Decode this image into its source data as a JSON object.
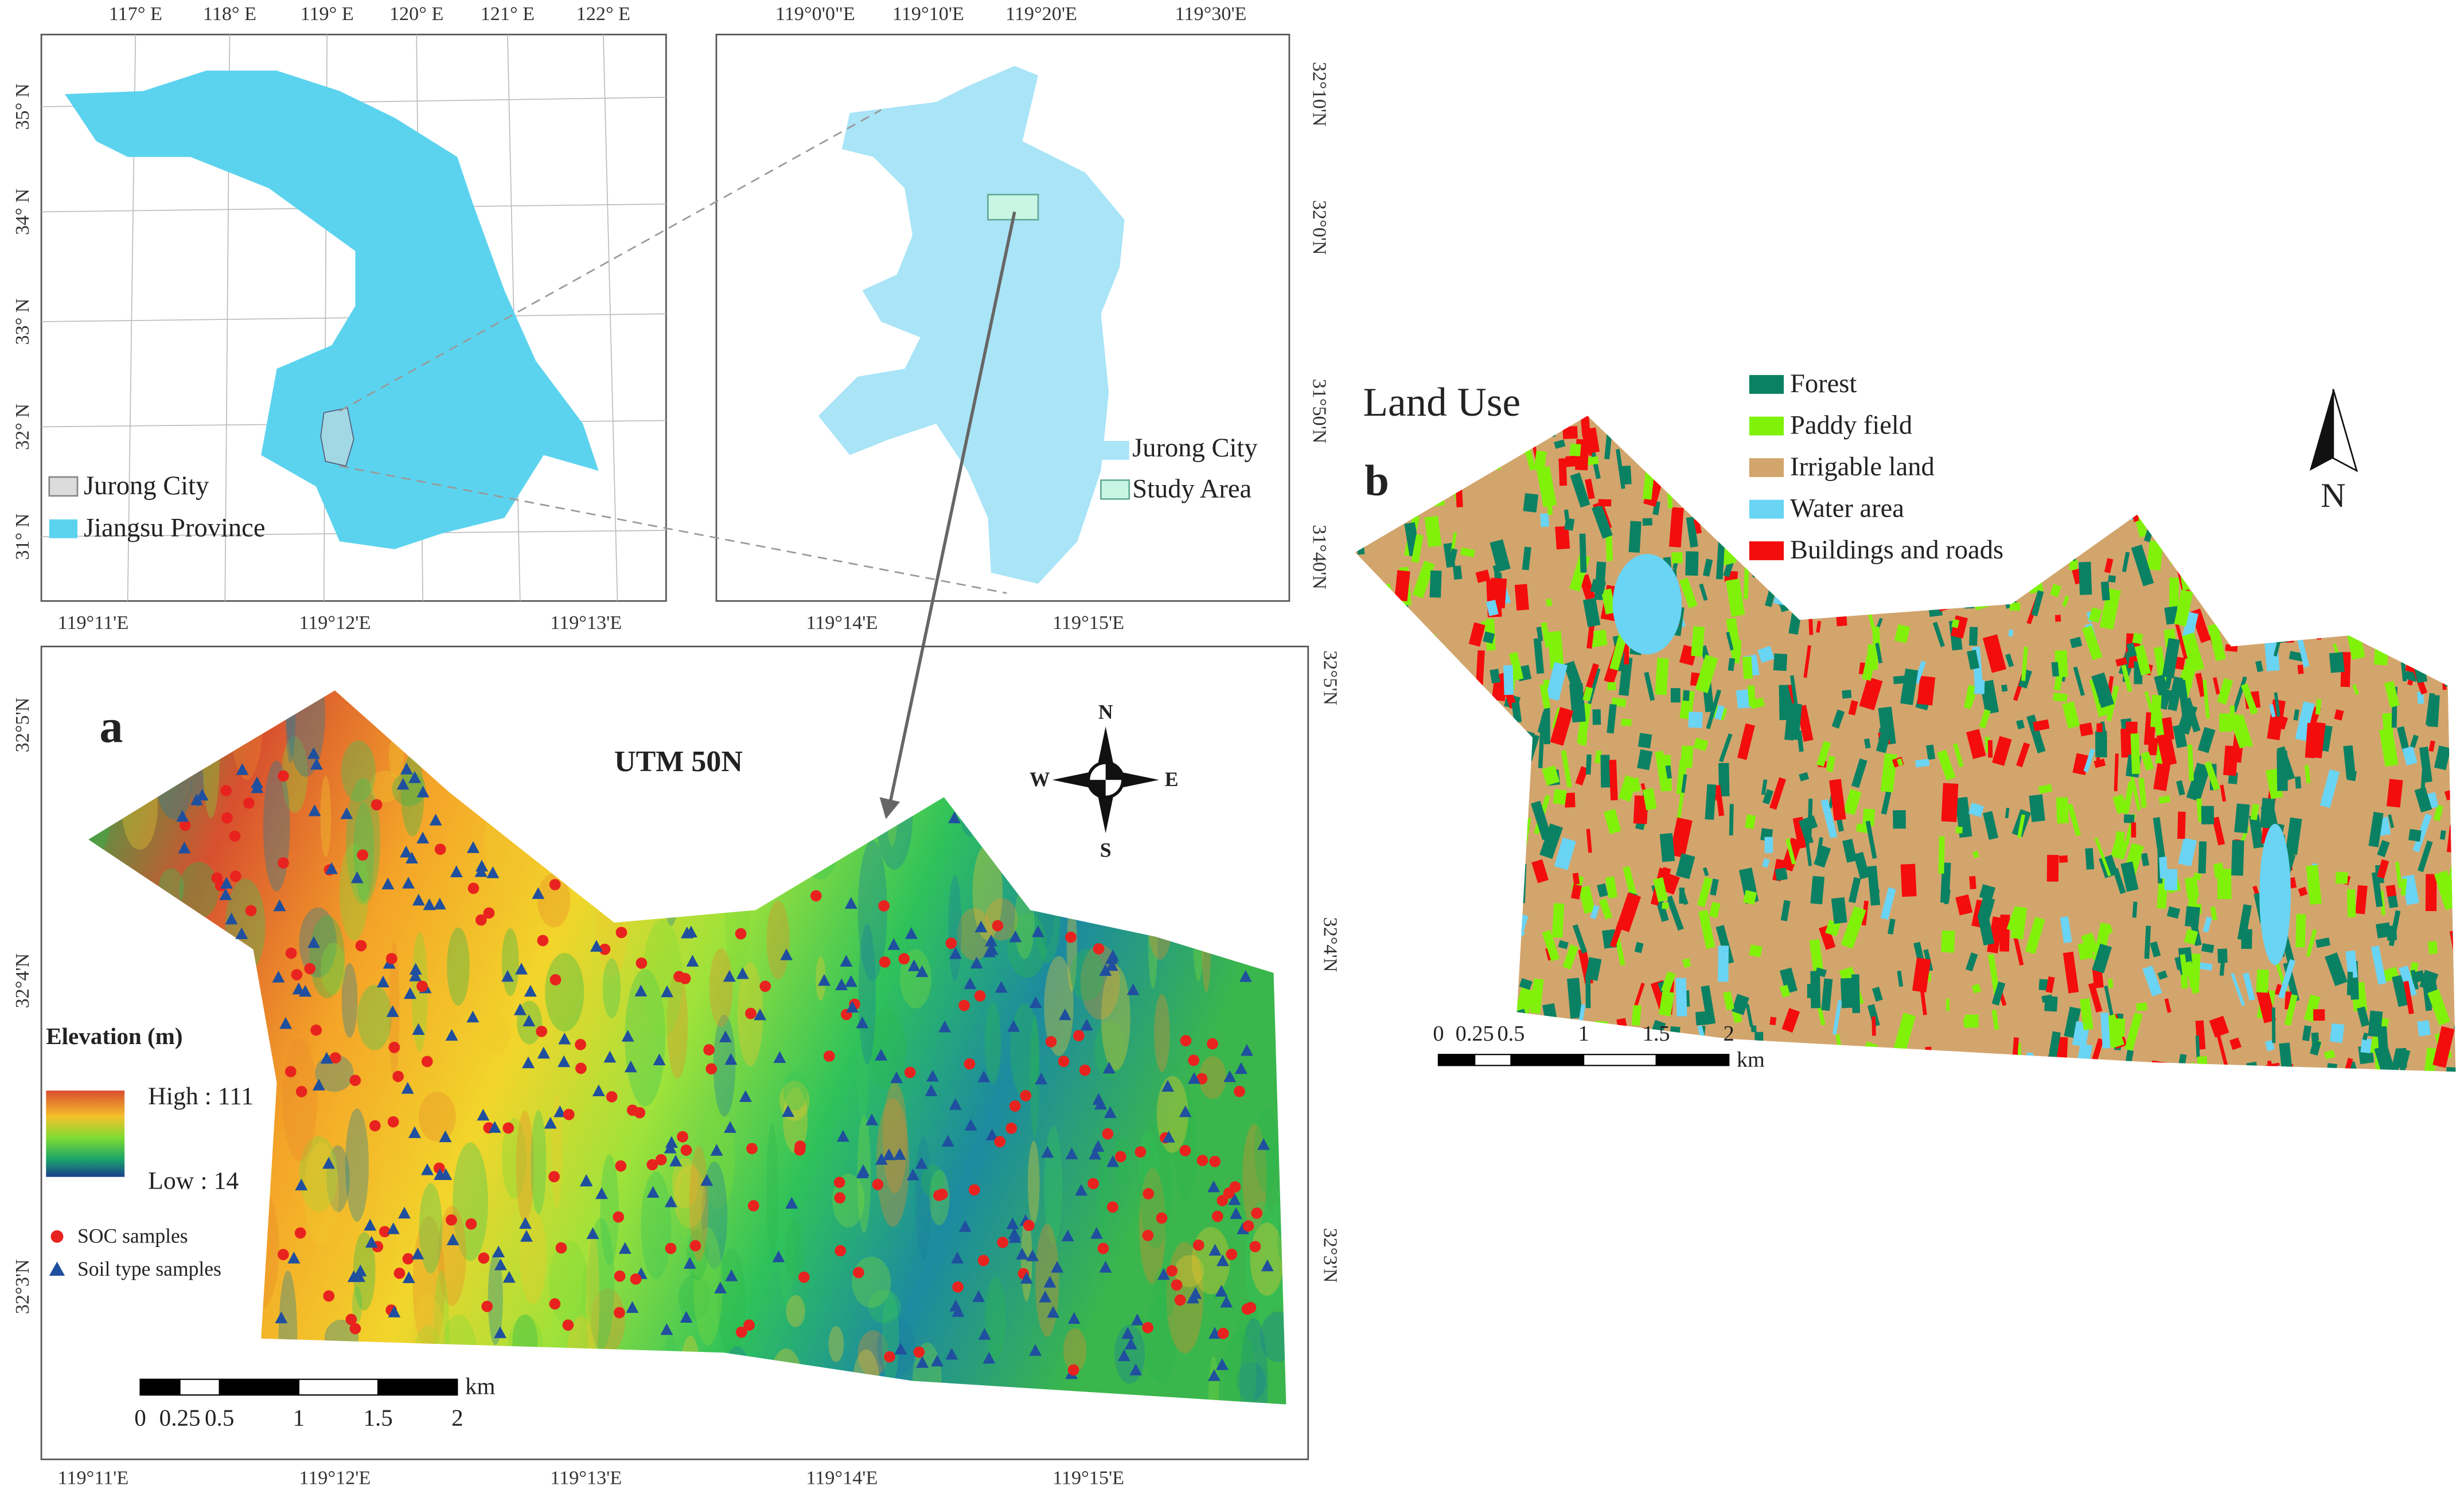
{
  "inset_province": {
    "lon_labels": [
      "117° E",
      "118° E",
      "119° E",
      "120° E",
      "121° E",
      "122° E"
    ],
    "lat_labels": [
      "35° N",
      "34° N",
      "33° N",
      "32° N",
      "31° N"
    ],
    "legend": [
      {
        "label": "Jurong City",
        "color": "#dcdcdc"
      },
      {
        "label": "Jiangsu Province",
        "color": "#5cd3ee"
      }
    ]
  },
  "inset_city": {
    "lon_labels": [
      "119°0'0\"E",
      "119°10'E",
      "119°20'E",
      "119°30'E"
    ],
    "lat_labels": [
      "32°10'N",
      "32°0'N",
      "31°50'N",
      "31°40'N"
    ],
    "legend": [
      {
        "label": "Jurong City",
        "color": "#a9e4f7"
      },
      {
        "label": "Study Area",
        "color": "#c9f6e4"
      }
    ]
  },
  "panel_a": {
    "label": "a",
    "projection": "UTM 50N",
    "lon_labels": [
      "119°11'E",
      "119°12'E",
      "119°13'E",
      "119°14'E",
      "119°15'E"
    ],
    "lat_labels": [
      "32°5'N",
      "32°4'N",
      "32°3'N"
    ],
    "compass": {
      "n": "N",
      "s": "S",
      "w": "W",
      "e": "E"
    },
    "legend_title": "Elevation (m)",
    "high": "High : 111",
    "low": "Low : 14",
    "samples": [
      {
        "label": "SOC samples",
        "color": "#e8231f"
      },
      {
        "label": "Soil type samples",
        "color": "#1f4f9e"
      }
    ],
    "scale": [
      "0",
      "0.25",
      "0.5",
      "1",
      "1.5",
      "2"
    ],
    "scale_unit": "km"
  },
  "panel_b": {
    "title": "Land Use",
    "label": "b",
    "legend": [
      {
        "label": "Forest",
        "color": "#0b8163"
      },
      {
        "label": "Paddy field",
        "color": "#80f20a"
      },
      {
        "label": "Irrigable land",
        "color": "#d2a56d"
      },
      {
        "label": "Water area",
        "color": "#6ad4f5"
      },
      {
        "label": "Buildings and roads",
        "color": "#f40d0d"
      }
    ],
    "north": "N",
    "scale": [
      "0",
      "0.25",
      "0.5",
      "1",
      "1.5",
      "2"
    ],
    "scale_unit": "km"
  }
}
